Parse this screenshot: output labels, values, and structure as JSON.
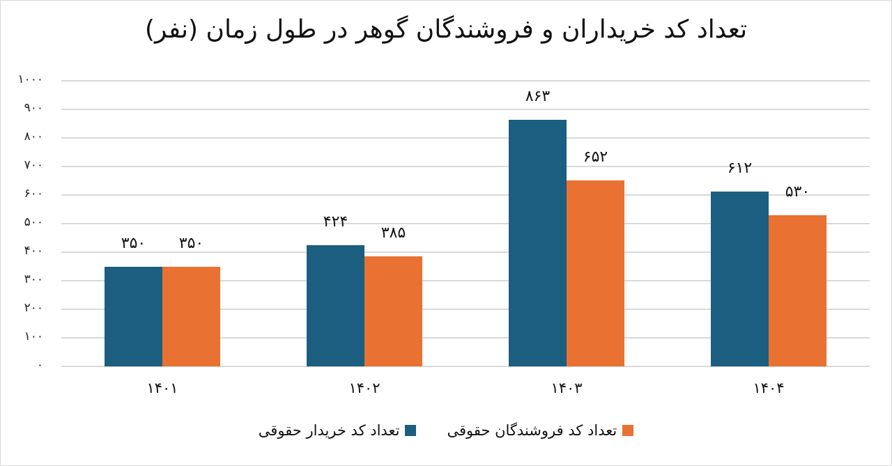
{
  "chart_data": {
    "type": "bar",
    "title": "تعداد کد خریداران و فروشندگان گوهر در طول زمان (نفر)",
    "xlabel": "",
    "ylabel": "",
    "categories": [
      "۱۴۰۱",
      "۱۴۰۲",
      "۱۴۰۳",
      "۱۴۰۴"
    ],
    "series": [
      {
        "name": "تعداد کد خریدار حقوقی",
        "color": "#1b5e80",
        "values": [
          350,
          424,
          863,
          612
        ],
        "labels": [
          "۳۵۰",
          "۴۲۴",
          "۸۶۳",
          "۶۱۲"
        ]
      },
      {
        "name": "تعداد کد فروشندگان حقوقی",
        "color": "#e97132",
        "values": [
          350,
          385,
          652,
          530
        ],
        "labels": [
          "۳۵۰",
          "۳۸۵",
          "۶۵۲",
          "۵۳۰"
        ]
      }
    ],
    "ylim": [
      0,
      1000
    ],
    "yticks": [
      0,
      100,
      200,
      300,
      400,
      500,
      600,
      700,
      800,
      900,
      1000
    ],
    "ytick_labels": [
      "۰",
      "۱۰۰",
      "۲۰۰",
      "۳۰۰",
      "۴۰۰",
      "۵۰۰",
      "۶۰۰",
      "۷۰۰",
      "۸۰۰",
      "۹۰۰",
      "۱۰۰۰"
    ],
    "grid": true,
    "legend_position": "bottom"
  }
}
